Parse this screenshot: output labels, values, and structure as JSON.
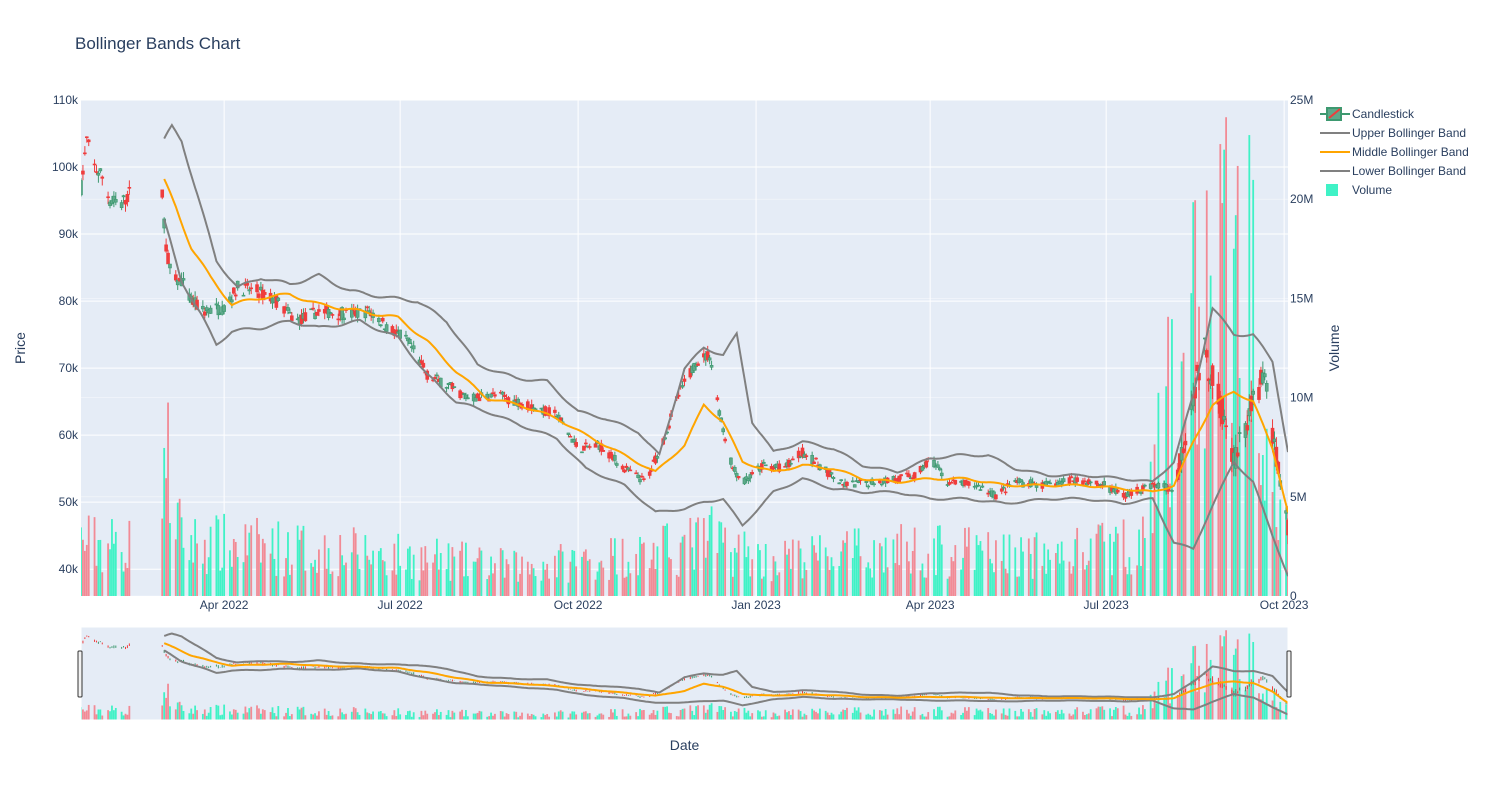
{
  "title": "Bollinger Bands Chart",
  "colors": {
    "plot_bg": "#e5ecf6",
    "grid": "#ffffff",
    "increasing": "#3d9970",
    "increasing_fill": "#5fa98a",
    "decreasing": "#ef3d3d",
    "volume_up": "#3ff2c6",
    "volume_down": "#f28a95",
    "band": "#808080",
    "middle": "#ffa500",
    "text": "#2a3f5f"
  },
  "legend": [
    {
      "label": "Candlestick",
      "icon": "candlestick-swatch"
    },
    {
      "label": "Upper Bollinger Band",
      "icon": "gray-line-swatch"
    },
    {
      "label": "Middle Bollinger Band",
      "icon": "orange-line-swatch"
    },
    {
      "label": "Lower Bollinger Band",
      "icon": "gray-line-swatch"
    },
    {
      "label": "Volume",
      "icon": "green-square-swatch"
    }
  ],
  "chart_data": {
    "type": "candlestick",
    "title": "Bollinger Bands Chart",
    "xlabel": "Date",
    "ylabel": "Price",
    "y2label": "Volume",
    "x_range": [
      "2022-01-17",
      "2023-10-03"
    ],
    "ylim": [
      36000,
      110000
    ],
    "y2lim": [
      0,
      25000000
    ],
    "y_ticks": [
      {
        "value": 40000,
        "label": "40k"
      },
      {
        "value": 50000,
        "label": "50k"
      },
      {
        "value": 60000,
        "label": "60k"
      },
      {
        "value": 70000,
        "label": "70k"
      },
      {
        "value": 80000,
        "label": "80k"
      },
      {
        "value": 90000,
        "label": "90k"
      },
      {
        "value": 100000,
        "label": "100k"
      },
      {
        "value": 110000,
        "label": "110k"
      }
    ],
    "y2_ticks": [
      {
        "value": 0,
        "label": "0"
      },
      {
        "value": 5000000,
        "label": "5M"
      },
      {
        "value": 10000000,
        "label": "10M"
      },
      {
        "value": 15000000,
        "label": "15M"
      },
      {
        "value": 20000000,
        "label": "20M"
      },
      {
        "value": 25000000,
        "label": "25M"
      }
    ],
    "x_ticks": [
      {
        "date": "2022-04-01",
        "label": "Apr 2022"
      },
      {
        "date": "2022-07-01",
        "label": "Jul 2022"
      },
      {
        "date": "2022-10-01",
        "label": "Oct 2022"
      },
      {
        "date": "2023-01-01",
        "label": "Jan 2023"
      },
      {
        "date": "2023-04-01",
        "label": "Apr 2023"
      },
      {
        "date": "2023-07-01",
        "label": "Jul 2023"
      },
      {
        "date": "2023-10-01",
        "label": "Oct 2023"
      }
    ],
    "series": [
      {
        "name": "Candlestick",
        "kind": "ohlc"
      },
      {
        "name": "Upper Bollinger Band",
        "kind": "line"
      },
      {
        "name": "Middle Bollinger Band",
        "kind": "line"
      },
      {
        "name": "Lower Bollinger Band",
        "kind": "line"
      },
      {
        "name": "Volume",
        "kind": "bar",
        "axis": "y2"
      }
    ],
    "price_path": [
      [
        "2022-01-17",
        97000
      ],
      [
        "2022-01-20",
        104000
      ],
      [
        "2022-01-24",
        100000
      ],
      [
        "2022-01-28",
        98500
      ],
      [
        "2022-02-01",
        95000
      ],
      [
        "2022-02-07",
        94500
      ],
      [
        "2022-02-11",
        96000
      ],
      [
        "2022-02-28",
        96000
      ],
      [
        "2022-03-02",
        88000
      ],
      [
        "2022-03-05",
        83000
      ],
      [
        "2022-03-10",
        83000
      ],
      [
        "2022-03-15",
        80000
      ],
      [
        "2022-03-22",
        78500
      ],
      [
        "2022-04-01",
        79000
      ],
      [
        "2022-04-08",
        82000
      ],
      [
        "2022-04-18",
        81500
      ],
      [
        "2022-04-28",
        80000
      ],
      [
        "2022-05-08",
        77000
      ],
      [
        "2022-05-20",
        78500
      ],
      [
        "2022-06-05",
        78000
      ],
      [
        "2022-06-15",
        78500
      ],
      [
        "2022-06-25",
        76000
      ],
      [
        "2022-07-05",
        74000
      ],
      [
        "2022-07-15",
        69000
      ],
      [
        "2022-07-25",
        67500
      ],
      [
        "2022-08-05",
        65500
      ],
      [
        "2022-08-20",
        66000
      ],
      [
        "2022-09-05",
        64500
      ],
      [
        "2022-09-20",
        63000
      ],
      [
        "2022-10-01",
        58000
      ],
      [
        "2022-10-12",
        58500
      ],
      [
        "2022-10-25",
        55000
      ],
      [
        "2022-11-05",
        53000
      ],
      [
        "2022-11-15",
        60000
      ],
      [
        "2022-11-22",
        66000
      ],
      [
        "2022-12-01",
        71000
      ],
      [
        "2022-12-08",
        72000
      ],
      [
        "2022-12-14",
        62000
      ],
      [
        "2022-12-20",
        55000
      ],
      [
        "2022-12-26",
        53000
      ],
      [
        "2023-01-05",
        55500
      ],
      [
        "2023-01-15",
        55000
      ],
      [
        "2023-01-25",
        57500
      ],
      [
        "2023-02-05",
        55000
      ],
      [
        "2023-02-15",
        52500
      ],
      [
        "2023-03-01",
        53000
      ],
      [
        "2023-03-15",
        53500
      ],
      [
        "2023-03-25",
        54000
      ],
      [
        "2023-04-01",
        56500
      ],
      [
        "2023-04-10",
        53000
      ],
      [
        "2023-04-25",
        52500
      ],
      [
        "2023-05-05",
        51000
      ],
      [
        "2023-05-15",
        53000
      ],
      [
        "2023-05-30",
        52500
      ],
      [
        "2023-06-15",
        53500
      ],
      [
        "2023-06-30",
        52500
      ],
      [
        "2023-07-10",
        51000
      ],
      [
        "2023-07-25",
        52500
      ],
      [
        "2023-08-05",
        52000
      ],
      [
        "2023-08-12",
        62000
      ],
      [
        "2023-08-20",
        73000
      ],
      [
        "2023-08-28",
        66000
      ],
      [
        "2023-09-05",
        56000
      ],
      [
        "2023-09-12",
        62000
      ],
      [
        "2023-09-20",
        69000
      ],
      [
        "2023-09-28",
        55000
      ],
      [
        "2023-10-03",
        46000
      ]
    ],
    "upper_band": [
      [
        "2022-03-01",
        104000
      ],
      [
        "2022-03-05",
        106000
      ],
      [
        "2022-03-10",
        104000
      ],
      [
        "2022-03-20",
        94000
      ],
      [
        "2022-03-28",
        86000
      ],
      [
        "2022-04-08",
        82000
      ],
      [
        "2022-04-20",
        83500
      ],
      [
        "2022-05-05",
        82500
      ],
      [
        "2022-05-20",
        83800
      ],
      [
        "2022-06-05",
        81500
      ],
      [
        "2022-06-25",
        80500
      ],
      [
        "2022-07-10",
        80000
      ],
      [
        "2022-07-25",
        77000
      ],
      [
        "2022-08-10",
        70500
      ],
      [
        "2022-08-30",
        68500
      ],
      [
        "2022-09-15",
        68000
      ],
      [
        "2022-10-01",
        63500
      ],
      [
        "2022-10-15",
        62500
      ],
      [
        "2022-11-01",
        60500
      ],
      [
        "2022-11-12",
        57000
      ],
      [
        "2022-11-25",
        70000
      ],
      [
        "2022-12-05",
        73000
      ],
      [
        "2022-12-15",
        72000
      ],
      [
        "2022-12-22",
        75000
      ],
      [
        "2022-12-30",
        62000
      ],
      [
        "2023-01-10",
        57500
      ],
      [
        "2023-01-25",
        59000
      ],
      [
        "2023-02-10",
        58000
      ],
      [
        "2023-02-25",
        55500
      ],
      [
        "2023-03-15",
        54500
      ],
      [
        "2023-04-01",
        56500
      ],
      [
        "2023-04-15",
        57000
      ],
      [
        "2023-05-01",
        57000
      ],
      [
        "2023-05-15",
        55000
      ],
      [
        "2023-06-01",
        54000
      ],
      [
        "2023-06-20",
        54000
      ],
      [
        "2023-07-10",
        53500
      ],
      [
        "2023-07-25",
        53000
      ],
      [
        "2023-08-05",
        56000
      ],
      [
        "2023-08-15",
        66000
      ],
      [
        "2023-08-25",
        79000
      ],
      [
        "2023-09-05",
        75000
      ],
      [
        "2023-09-15",
        75000
      ],
      [
        "2023-09-25",
        71000
      ],
      [
        "2023-10-03",
        57500
      ]
    ],
    "middle_band": [
      [
        "2022-03-01",
        98000
      ],
      [
        "2022-03-07",
        94000
      ],
      [
        "2022-03-15",
        88000
      ],
      [
        "2022-03-25",
        83500
      ],
      [
        "2022-04-05",
        79500
      ],
      [
        "2022-04-20",
        80500
      ],
      [
        "2022-05-05",
        81000
      ],
      [
        "2022-05-20",
        79500
      ],
      [
        "2022-06-10",
        78500
      ],
      [
        "2022-06-30",
        77500
      ],
      [
        "2022-07-15",
        74000
      ],
      [
        "2022-07-30",
        69500
      ],
      [
        "2022-08-15",
        65500
      ],
      [
        "2022-09-01",
        64500
      ],
      [
        "2022-09-20",
        62500
      ],
      [
        "2022-10-05",
        60000
      ],
      [
        "2022-10-25",
        57000
      ],
      [
        "2022-11-10",
        54500
      ],
      [
        "2022-11-25",
        58500
      ],
      [
        "2022-12-05",
        64500
      ],
      [
        "2022-12-15",
        62000
      ],
      [
        "2022-12-25",
        56000
      ],
      [
        "2023-01-10",
        54500
      ],
      [
        "2023-01-25",
        55500
      ],
      [
        "2023-02-10",
        55000
      ],
      [
        "2023-02-25",
        53500
      ],
      [
        "2023-03-15",
        53000
      ],
      [
        "2023-04-01",
        53500
      ],
      [
        "2023-04-20",
        53500
      ],
      [
        "2023-05-10",
        52500
      ],
      [
        "2023-06-01",
        52500
      ],
      [
        "2023-06-20",
        52500
      ],
      [
        "2023-07-10",
        52000
      ],
      [
        "2023-07-25",
        51500
      ],
      [
        "2023-08-05",
        52500
      ],
      [
        "2023-08-15",
        59000
      ],
      [
        "2023-08-25",
        64500
      ],
      [
        "2023-09-05",
        66500
      ],
      [
        "2023-09-15",
        65000
      ],
      [
        "2023-09-25",
        58000
      ],
      [
        "2023-10-03",
        48500
      ]
    ],
    "lower_band": [
      [
        "2022-03-01",
        92000
      ],
      [
        "2022-03-10",
        83000
      ],
      [
        "2022-03-20",
        78000
      ],
      [
        "2022-03-28",
        73500
      ],
      [
        "2022-04-05",
        75500
      ],
      [
        "2022-04-20",
        76000
      ],
      [
        "2022-05-05",
        77000
      ],
      [
        "2022-05-20",
        76000
      ],
      [
        "2022-06-10",
        77000
      ],
      [
        "2022-06-30",
        74500
      ],
      [
        "2022-07-15",
        69000
      ],
      [
        "2022-07-30",
        65000
      ],
      [
        "2022-08-15",
        63500
      ],
      [
        "2022-09-01",
        61500
      ],
      [
        "2022-09-20",
        59500
      ],
      [
        "2022-10-05",
        55000
      ],
      [
        "2022-10-25",
        52500
      ],
      [
        "2022-11-10",
        48500
      ],
      [
        "2022-11-25",
        49000
      ],
      [
        "2022-12-05",
        50000
      ],
      [
        "2022-12-15",
        50500
      ],
      [
        "2022-12-25",
        46500
      ],
      [
        "2023-01-10",
        51500
      ],
      [
        "2023-01-25",
        53500
      ],
      [
        "2023-02-10",
        52000
      ],
      [
        "2023-02-25",
        51500
      ],
      [
        "2023-03-15",
        51500
      ],
      [
        "2023-04-01",
        50500
      ],
      [
        "2023-04-20",
        50500
      ],
      [
        "2023-05-10",
        49800
      ],
      [
        "2023-06-01",
        50500
      ],
      [
        "2023-06-20",
        50500
      ],
      [
        "2023-07-10",
        49800
      ],
      [
        "2023-07-25",
        50500
      ],
      [
        "2023-08-05",
        44000
      ],
      [
        "2023-08-15",
        43000
      ],
      [
        "2023-08-25",
        49500
      ],
      [
        "2023-09-05",
        56000
      ],
      [
        "2023-09-15",
        53000
      ],
      [
        "2023-09-25",
        45000
      ],
      [
        "2023-10-03",
        39000
      ]
    ],
    "volume_profile": [
      [
        "2022-01-17",
        3000000
      ],
      [
        "2022-02-12",
        2800000
      ],
      [
        "2022-02-28",
        9000000
      ],
      [
        "2022-03-10",
        3000000
      ],
      [
        "2022-06-01",
        2500000
      ],
      [
        "2022-09-01",
        1600000
      ],
      [
        "2022-11-20",
        2600000
      ],
      [
        "2022-12-10",
        3200000
      ],
      [
        "2023-01-05",
        2000000
      ],
      [
        "2023-03-20",
        2600000
      ],
      [
        "2023-06-01",
        2200000
      ],
      [
        "2023-07-20",
        3000000
      ],
      [
        "2023-08-10",
        14000000
      ],
      [
        "2023-08-30",
        18000000
      ],
      [
        "2023-09-15",
        17000000
      ],
      [
        "2023-10-03",
        4500000
      ]
    ],
    "gap": [
      "2022-02-12",
      "2022-02-28"
    ]
  }
}
